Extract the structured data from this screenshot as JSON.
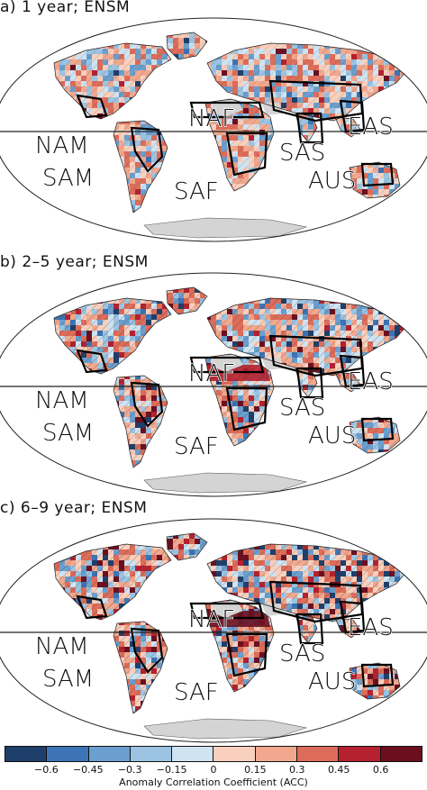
{
  "panels": [
    {
      "title": "a) 1 year; ENSM",
      "style": "weak"
    },
    {
      "title": "b) 2–5 year; ENSM",
      "style": "medium"
    },
    {
      "title": "c) 6–9 year; ENSM",
      "style": "strong"
    }
  ],
  "regions": [
    "NAF",
    "EAS",
    "NAM",
    "SAS",
    "SAM",
    "AUS",
    "SAF"
  ],
  "colorbar": {
    "title": "Anomaly Correlation Coefficient (ACC)",
    "ticks": [
      "−0.6",
      "−0.45",
      "−0.3",
      "−0.15",
      "0",
      "0.15",
      "0.3",
      "0.45",
      "0.6"
    ],
    "colors": [
      "#1f3f6b",
      "#3d74b5",
      "#6a9fcf",
      "#9cc4e2",
      "#cfe3f1",
      "#f9d0be",
      "#f1a88e",
      "#dd6d5a",
      "#b6212f",
      "#6b0f1f"
    ]
  }
}
